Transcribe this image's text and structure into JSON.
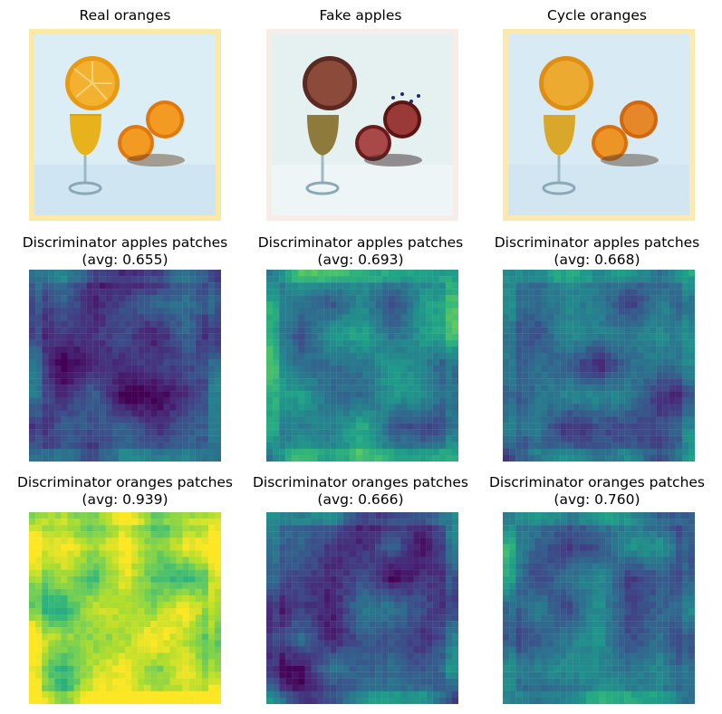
{
  "figure": {
    "rows": [
      {
        "panels": [
          {
            "title": "Real oranges",
            "image": "photo of orange slices with a glass of juice",
            "palette": "natural"
          },
          {
            "title": "Fake apples",
            "image": "translated photo with red apple tones",
            "palette": "natural"
          },
          {
            "title": "Cycle oranges",
            "image": "reconstructed orange photo",
            "palette": "natural"
          }
        ]
      },
      {
        "panels": [
          {
            "title": "Discriminator apples patches",
            "subtitle": "(avg: 0.655)",
            "avg": 0.655,
            "colormap": "viridis"
          },
          {
            "title": "Discriminator apples patches",
            "subtitle": "(avg: 0.693)",
            "avg": 0.693,
            "colormap": "viridis"
          },
          {
            "title": "Discriminator apples patches",
            "subtitle": "(avg: 0.668)",
            "avg": 0.668,
            "colormap": "viridis"
          }
        ]
      },
      {
        "panels": [
          {
            "title": "Discriminator oranges patches",
            "subtitle": "(avg: 0.939)",
            "avg": 0.939,
            "colormap": "viridis"
          },
          {
            "title": "Discriminator oranges patches",
            "subtitle": "(avg: 0.666)",
            "avg": 0.666,
            "colormap": "viridis"
          },
          {
            "title": "Discriminator oranges patches",
            "subtitle": "(avg: 0.760)",
            "avg": 0.76,
            "colormap": "viridis"
          }
        ]
      }
    ]
  }
}
